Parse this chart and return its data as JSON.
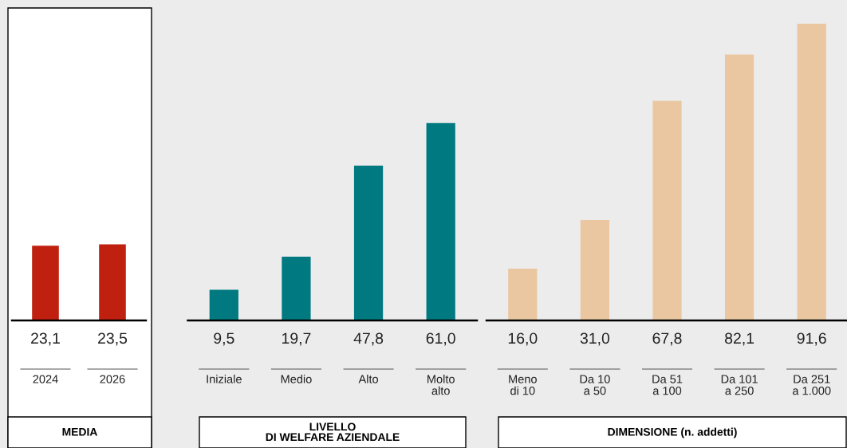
{
  "chart_data": [
    {
      "type": "bar",
      "title": "MEDIA",
      "categories": [
        "2024",
        "2026"
      ],
      "values": [
        23.1,
        23.5
      ],
      "value_labels": [
        "23,1",
        "23,5"
      ],
      "color": "#c0200f"
    },
    {
      "type": "bar",
      "title": "LIVELLO\nDI WELFARE AZIENDALE",
      "categories": [
        "Iniziale",
        "Medio",
        "Alto",
        "Molto\nalto"
      ],
      "values": [
        9.5,
        19.7,
        47.8,
        61.0
      ],
      "value_labels": [
        "9,5",
        "19,7",
        "47,8",
        "61,0"
      ],
      "color": "#007a80"
    },
    {
      "type": "bar",
      "title": "DIMENSIONE (n. addetti)",
      "categories": [
        "Meno\ndi 10",
        "Da 10\na 50",
        "Da 51\na 100",
        "Da 101\na 250",
        "Da 251\na 1.000"
      ],
      "values": [
        16.0,
        31.0,
        67.8,
        82.1,
        91.6
      ],
      "value_labels": [
        "16,0",
        "31,0",
        "67,8",
        "82,1",
        "91,6"
      ],
      "color": "#eac7a0"
    }
  ]
}
